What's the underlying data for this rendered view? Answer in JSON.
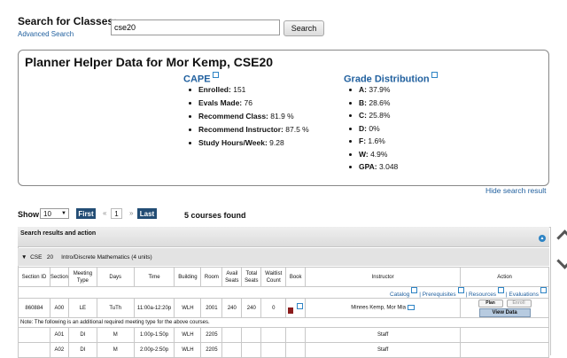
{
  "search": {
    "label": "Search for Classes:",
    "advanced_link": "Advanced Search",
    "input_value": "cse20",
    "button_label": "Search"
  },
  "planner": {
    "title": "Planner Helper Data for Mor Kemp, CSE20",
    "cape": {
      "heading": "CAPE",
      "stats": [
        {
          "label": "Enrolled:",
          "value": "151"
        },
        {
          "label": "Evals Made:",
          "value": "76"
        },
        {
          "label": "Recommend Class:",
          "value": "81.9 %"
        },
        {
          "label": "Recommend Instructor:",
          "value": "87.5 %"
        },
        {
          "label": "Study Hours/Week:",
          "value": "9.28"
        }
      ]
    },
    "grades": {
      "heading": "Grade Distribution",
      "stats": [
        {
          "label": "A:",
          "value": "37.9%"
        },
        {
          "label": "B:",
          "value": "28.6%"
        },
        {
          "label": "C:",
          "value": "25.8%"
        },
        {
          "label": "D:",
          "value": "0%"
        },
        {
          "label": "F:",
          "value": "1.6%"
        },
        {
          "label": "W:",
          "value": "4.9%"
        },
        {
          "label": "GPA:",
          "value": "3.048"
        }
      ]
    },
    "hide_link": "Hide search result"
  },
  "pager": {
    "show_label": "Show",
    "per_page": "10",
    "first": "First",
    "prev": "«",
    "page": "1",
    "next": "»",
    "last": "Last",
    "found": "5 courses found"
  },
  "results": {
    "title": "Search results and action",
    "course": {
      "subject": "CSE",
      "number": "20",
      "name": "Intro/Discrete Mathematics (4 units)"
    },
    "columns": [
      "Section ID",
      "Section",
      "Meeting Type",
      "Days",
      "Time",
      "Building",
      "Room",
      "Avail Seats",
      "Total Seats",
      "Waitlist Count",
      "Book",
      "Instructor",
      "Action"
    ],
    "links": {
      "catalog": "Catalog",
      "prereqs": "Prerequisites",
      "resources": "Resources",
      "evaluations": "Evaluations",
      "sep": "|"
    },
    "main_row": {
      "section_id": "860884",
      "section": "A00",
      "type": "LE",
      "days": "TuTh",
      "time": "11:00a-12:20p",
      "building": "WLH",
      "room": "2001",
      "avail": "240",
      "total": "240",
      "waitlist": "0",
      "instructor": "Minnes Kemp, Mor Mia",
      "plan": "Plan",
      "enroll": "Enroll",
      "view": "View Data"
    },
    "note": "Note: The following is an additional required meeting type for the above courses.",
    "sub_rows": [
      {
        "section": "A01",
        "type": "DI",
        "days": "M",
        "time": "1:00p-1:50p",
        "building": "WLH",
        "room": "2205",
        "instructor": "Staff"
      },
      {
        "section": "A02",
        "type": "DI",
        "days": "M",
        "time": "2:00p-2:50p",
        "building": "WLH",
        "room": "2205",
        "instructor": "Staff"
      }
    ]
  }
}
